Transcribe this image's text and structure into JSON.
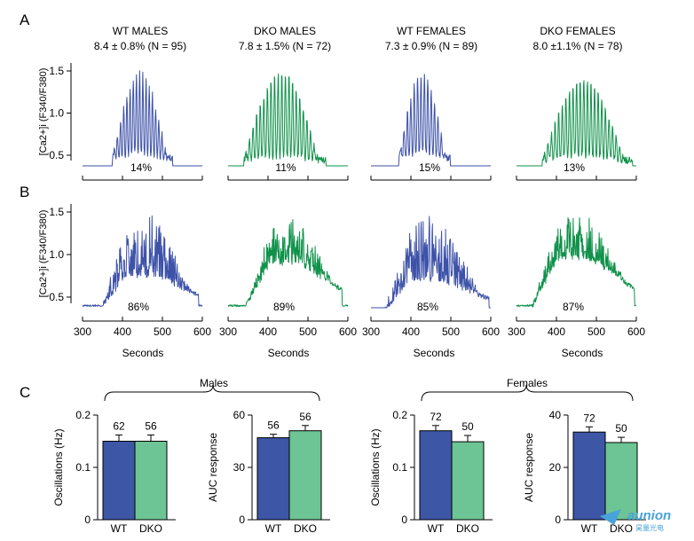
{
  "panel_labels": {
    "a": "A",
    "b": "B",
    "c": "C"
  },
  "colors": {
    "wt": "#3d52a8",
    "dko": "#10914a",
    "wt_bar": "#3d56a6",
    "dko_bar": "#6dc494",
    "axis": "#000000"
  },
  "watermark": {
    "brand": "aunion",
    "sub": "昊量光电"
  },
  "trace_columns": [
    {
      "title": "WT MALES",
      "stats": "8.4 ± 0.8% (N = 95)",
      "color_key": "wt"
    },
    {
      "title": "DKO MALES",
      "stats": "7.8 ±  1.5% (N = 72)",
      "color_key": "dko"
    },
    {
      "title": "WT FEMALES",
      "stats": "7.3 ± 0.9% (N = 89)",
      "color_key": "wt"
    },
    {
      "title": "DKO FEMALES",
      "stats": "8.0 ±1.1% (N = 78)",
      "color_key": "dko"
    }
  ],
  "traces_row_a": {
    "ylabel": "[Ca2+]i (F340/F380)",
    "yticks": [
      "1.5",
      "1.0",
      "0.5"
    ],
    "percents": [
      "14%",
      "11%",
      "15%",
      "13%"
    ]
  },
  "traces_row_b": {
    "ylabel": "[Ca2+]i (F340/F380)",
    "yticks": [
      "1.5",
      "1.0",
      "0.5"
    ],
    "percents": [
      "86%",
      "89%",
      "85%",
      "87%"
    ]
  },
  "time_axis": {
    "xlabel": "Seconds",
    "ticks": [
      "300",
      "400",
      "500",
      "600"
    ]
  },
  "group_labels": {
    "males": "Males",
    "females": "Females"
  },
  "chart_data": [
    {
      "type": "bar",
      "group": "Males",
      "categories": [
        "WT",
        "DKO"
      ],
      "values": [
        0.15,
        0.15
      ],
      "errors": [
        0.012,
        0.012
      ],
      "n_labels": [
        "62",
        "56"
      ],
      "ylabel": "Oscillations (Hz)",
      "ylim": [
        0,
        0.2
      ],
      "yticks": [
        "0.2",
        "0.1",
        "0"
      ]
    },
    {
      "type": "bar",
      "group": "Males",
      "categories": [
        "WT",
        "DKO"
      ],
      "values": [
        47,
        51
      ],
      "errors": [
        2,
        3
      ],
      "n_labels": [
        "56",
        "56"
      ],
      "ylabel": "AUC response",
      "ylim": [
        0,
        60
      ],
      "yticks": [
        "60",
        "30",
        "0"
      ]
    },
    {
      "type": "bar",
      "group": "Females",
      "categories": [
        "WT",
        "DKO"
      ],
      "values": [
        0.17,
        0.149
      ],
      "errors": [
        0.01,
        0.012
      ],
      "n_labels": [
        "72",
        "50"
      ],
      "ylabel": "Oscillations (Hz)",
      "ylim": [
        0,
        0.2
      ],
      "yticks": [
        "0.2",
        "0.1",
        "0"
      ]
    },
    {
      "type": "bar",
      "group": "Females",
      "categories": [
        "WT",
        "DKO"
      ],
      "values": [
        33.5,
        29.5
      ],
      "errors": [
        2,
        2
      ],
      "n_labels": [
        "72",
        "50"
      ],
      "ylabel": "AUC response",
      "ylim": [
        0,
        40
      ],
      "yticks": [
        "40",
        "20",
        "0"
      ]
    }
  ]
}
